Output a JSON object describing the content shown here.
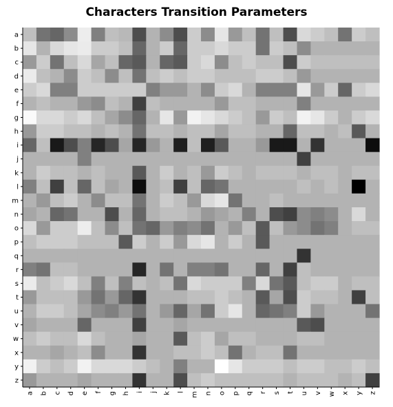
{
  "chart_data": {
    "type": "heatmap",
    "title": "Characters Transition Parameters",
    "xlabel": "",
    "ylabel": "",
    "x_categories": [
      "a",
      "b",
      "c",
      "d",
      "e",
      "f",
      "g",
      "h",
      "i",
      "j",
      "k",
      "l",
      "m",
      "n",
      "o",
      "p",
      "q",
      "r",
      "s",
      "t",
      "u",
      "v",
      "w",
      "x",
      "y",
      "z"
    ],
    "y_categories": [
      "a",
      "b",
      "c",
      "d",
      "e",
      "f",
      "g",
      "h",
      "i",
      "j",
      "k",
      "l",
      "m",
      "n",
      "o",
      "p",
      "q",
      "r",
      "s",
      "t",
      "u",
      "v",
      "w",
      "x",
      "y",
      "z"
    ],
    "colormap": "gray (higher value = darker)",
    "value_range": [
      0,
      1
    ],
    "grid": false,
    "values": [
      [
        0.25,
        0.55,
        0.6,
        0.45,
        0.07,
        0.5,
        0.25,
        0.28,
        0.7,
        0.3,
        0.45,
        0.7,
        0.2,
        0.45,
        0.1,
        0.4,
        0.25,
        0.55,
        0.25,
        0.7,
        0.15,
        0.2,
        0.25,
        0.55,
        0.2,
        0.25
      ],
      [
        0.1,
        0.3,
        0.15,
        0.1,
        0.08,
        0.2,
        0.2,
        0.25,
        0.6,
        0.3,
        0.2,
        0.6,
        0.2,
        0.2,
        0.15,
        0.2,
        0.2,
        0.55,
        0.2,
        0.25,
        0.45,
        0.3,
        0.3,
        0.3,
        0.3,
        0.3
      ],
      [
        0.4,
        0.2,
        0.55,
        0.25,
        0.15,
        0.35,
        0.25,
        0.6,
        0.65,
        0.3,
        0.6,
        0.65,
        0.2,
        0.15,
        0.45,
        0.25,
        0.2,
        0.25,
        0.25,
        0.7,
        0.2,
        0.25,
        0.25,
        0.25,
        0.25,
        0.25
      ],
      [
        0.08,
        0.25,
        0.3,
        0.45,
        0.2,
        0.25,
        0.45,
        0.25,
        0.55,
        0.25,
        0.2,
        0.25,
        0.2,
        0.2,
        0.25,
        0.25,
        0.25,
        0.2,
        0.2,
        0.25,
        0.4,
        0.3,
        0.3,
        0.3,
        0.3,
        0.3
      ],
      [
        0.2,
        0.15,
        0.5,
        0.5,
        0.2,
        0.2,
        0.2,
        0.2,
        0.2,
        0.5,
        0.4,
        0.4,
        0.3,
        0.45,
        0.2,
        0.15,
        0.3,
        0.5,
        0.5,
        0.5,
        0.1,
        0.4,
        0.2,
        0.6,
        0.2,
        0.15
      ],
      [
        0.3,
        0.25,
        0.3,
        0.3,
        0.4,
        0.45,
        0.25,
        0.3,
        0.75,
        0.25,
        0.3,
        0.3,
        0.3,
        0.3,
        0.4,
        0.25,
        0.25,
        0.3,
        0.3,
        0.3,
        0.5,
        0.3,
        0.3,
        0.3,
        0.3,
        0.3
      ],
      [
        0.02,
        0.15,
        0.15,
        0.2,
        0.15,
        0.25,
        0.35,
        0.45,
        0.6,
        0.3,
        0.1,
        0.4,
        0.05,
        0.1,
        0.15,
        0.2,
        0.25,
        0.4,
        0.2,
        0.25,
        0.05,
        0.1,
        0.2,
        0.3,
        0.2,
        0.15
      ],
      [
        0.4,
        0.2,
        0.2,
        0.25,
        0.25,
        0.3,
        0.25,
        0.3,
        0.55,
        0.25,
        0.25,
        0.3,
        0.25,
        0.25,
        0.35,
        0.25,
        0.25,
        0.3,
        0.3,
        0.6,
        0.25,
        0.25,
        0.3,
        0.25,
        0.65,
        0.3
      ],
      [
        0.6,
        0.25,
        0.9,
        0.7,
        0.5,
        0.85,
        0.7,
        0.35,
        0.85,
        0.4,
        0.3,
        0.88,
        0.25,
        0.88,
        0.65,
        0.3,
        0.3,
        0.4,
        0.9,
        0.9,
        0.3,
        0.8,
        0.3,
        0.3,
        0.3,
        0.95
      ],
      [
        0.3,
        0.3,
        0.3,
        0.3,
        0.5,
        0.3,
        0.3,
        0.3,
        0.3,
        0.3,
        0.3,
        0.3,
        0.3,
        0.3,
        0.3,
        0.3,
        0.3,
        0.3,
        0.3,
        0.3,
        0.75,
        0.3,
        0.3,
        0.3,
        0.3,
        0.3
      ],
      [
        0.3,
        0.2,
        0.25,
        0.25,
        0.3,
        0.25,
        0.3,
        0.3,
        0.65,
        0.3,
        0.2,
        0.3,
        0.25,
        0.4,
        0.2,
        0.25,
        0.3,
        0.25,
        0.25,
        0.25,
        0.3,
        0.25,
        0.25,
        0.3,
        0.25,
        0.25
      ],
      [
        0.5,
        0.25,
        0.75,
        0.25,
        0.6,
        0.25,
        0.35,
        0.3,
        0.95,
        0.3,
        0.25,
        0.75,
        0.25,
        0.6,
        0.55,
        0.3,
        0.3,
        0.3,
        0.3,
        0.3,
        0.25,
        0.3,
        0.25,
        0.3,
        1.0,
        0.3
      ],
      [
        0.3,
        0.4,
        0.25,
        0.2,
        0.3,
        0.45,
        0.25,
        0.25,
        0.55,
        0.3,
        0.2,
        0.25,
        0.4,
        0.15,
        0.1,
        0.55,
        0.3,
        0.3,
        0.25,
        0.3,
        0.3,
        0.3,
        0.3,
        0.3,
        0.3,
        0.3
      ],
      [
        0.35,
        0.3,
        0.6,
        0.55,
        0.3,
        0.3,
        0.7,
        0.3,
        0.6,
        0.3,
        0.25,
        0.25,
        0.3,
        0.4,
        0.35,
        0.3,
        0.5,
        0.3,
        0.7,
        0.75,
        0.45,
        0.5,
        0.45,
        0.3,
        0.15,
        0.3
      ],
      [
        0.15,
        0.4,
        0.2,
        0.2,
        0.07,
        0.25,
        0.45,
        0.25,
        0.55,
        0.6,
        0.4,
        0.5,
        0.45,
        0.55,
        0.3,
        0.4,
        0.25,
        0.65,
        0.25,
        0.4,
        0.45,
        0.55,
        0.5,
        0.3,
        0.25,
        0.25
      ],
      [
        0.25,
        0.2,
        0.2,
        0.2,
        0.25,
        0.25,
        0.25,
        0.65,
        0.2,
        0.3,
        0.2,
        0.4,
        0.15,
        0.1,
        0.3,
        0.2,
        0.3,
        0.65,
        0.3,
        0.3,
        0.3,
        0.3,
        0.3,
        0.3,
        0.3,
        0.3
      ],
      [
        0.3,
        0.3,
        0.3,
        0.3,
        0.3,
        0.3,
        0.3,
        0.3,
        0.3,
        0.3,
        0.3,
        0.3,
        0.3,
        0.3,
        0.3,
        0.3,
        0.3,
        0.3,
        0.3,
        0.3,
        0.8,
        0.3,
        0.3,
        0.3,
        0.3,
        0.3
      ],
      [
        0.5,
        0.55,
        0.25,
        0.25,
        0.3,
        0.3,
        0.3,
        0.3,
        0.85,
        0.3,
        0.55,
        0.3,
        0.5,
        0.5,
        0.55,
        0.3,
        0.3,
        0.6,
        0.3,
        0.75,
        0.25,
        0.3,
        0.3,
        0.3,
        0.3,
        0.3
      ],
      [
        0.08,
        0.25,
        0.2,
        0.15,
        0.25,
        0.5,
        0.25,
        0.5,
        0.25,
        0.3,
        0.25,
        0.55,
        0.15,
        0.2,
        0.2,
        0.2,
        0.5,
        0.15,
        0.55,
        0.65,
        0.25,
        0.2,
        0.2,
        0.3,
        0.25,
        0.25
      ],
      [
        0.4,
        0.25,
        0.25,
        0.25,
        0.4,
        0.55,
        0.4,
        0.6,
        0.8,
        0.3,
        0.3,
        0.3,
        0.25,
        0.25,
        0.2,
        0.25,
        0.3,
        0.65,
        0.35,
        0.7,
        0.2,
        0.25,
        0.25,
        0.3,
        0.75,
        0.25
      ],
      [
        0.3,
        0.2,
        0.2,
        0.25,
        0.35,
        0.45,
        0.5,
        0.4,
        0.55,
        0.3,
        0.4,
        0.6,
        0.35,
        0.55,
        0.2,
        0.1,
        0.3,
        0.6,
        0.55,
        0.5,
        0.2,
        0.4,
        0.3,
        0.3,
        0.3,
        0.55
      ],
      [
        0.35,
        0.3,
        0.3,
        0.3,
        0.6,
        0.3,
        0.3,
        0.3,
        0.75,
        0.3,
        0.3,
        0.35,
        0.3,
        0.3,
        0.3,
        0.3,
        0.3,
        0.3,
        0.3,
        0.3,
        0.65,
        0.7,
        0.3,
        0.3,
        0.3,
        0.3
      ],
      [
        0.25,
        0.2,
        0.25,
        0.25,
        0.15,
        0.25,
        0.3,
        0.3,
        0.35,
        0.3,
        0.3,
        0.65,
        0.25,
        0.2,
        0.35,
        0.25,
        0.25,
        0.3,
        0.3,
        0.3,
        0.25,
        0.25,
        0.3,
        0.3,
        0.3,
        0.3
      ],
      [
        0.3,
        0.3,
        0.35,
        0.3,
        0.25,
        0.45,
        0.3,
        0.3,
        0.8,
        0.3,
        0.3,
        0.25,
        0.25,
        0.2,
        0.25,
        0.55,
        0.3,
        0.25,
        0.25,
        0.55,
        0.3,
        0.3,
        0.3,
        0.3,
        0.3,
        0.3
      ],
      [
        0.05,
        0.2,
        0.25,
        0.2,
        0.05,
        0.15,
        0.15,
        0.15,
        0.2,
        0.25,
        0.3,
        0.5,
        0.3,
        0.3,
        0.0,
        0.1,
        0.2,
        0.2,
        0.2,
        0.25,
        0.2,
        0.2,
        0.25,
        0.25,
        0.2,
        0.25
      ],
      [
        0.4,
        0.3,
        0.3,
        0.3,
        0.35,
        0.3,
        0.3,
        0.3,
        0.8,
        0.3,
        0.3,
        0.7,
        0.25,
        0.2,
        0.25,
        0.25,
        0.25,
        0.25,
        0.25,
        0.3,
        0.25,
        0.25,
        0.25,
        0.3,
        0.25,
        0.75
      ]
    ]
  }
}
